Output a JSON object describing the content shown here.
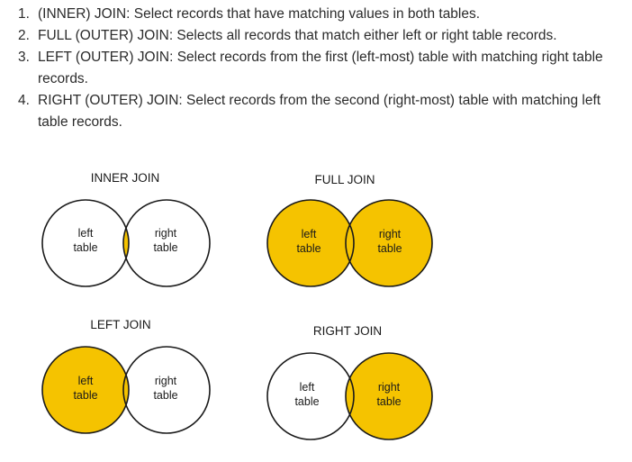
{
  "list": {
    "items": [
      {
        "num": "1.",
        "text": "(INNER) JOIN: Select records that have matching values in both tables."
      },
      {
        "num": "2.",
        "text": "FULL (OUTER) JOIN: Selects all records that match either left or right table records."
      },
      {
        "num": "3.",
        "text": "LEFT (OUTER) JOIN: Select records from the first (left-most) table with matching right table records."
      },
      {
        "num": "4.",
        "text": "RIGHT (OUTER) JOIN: Select records from the second (right-most) table with matching left table records."
      }
    ]
  },
  "diagrams": {
    "fill_color": "#f5c300",
    "stroke_color": "#1a1a1a",
    "inner": {
      "title": "INNER JOIN",
      "left_label_1": "left",
      "left_label_2": "table",
      "right_label_1": "right",
      "right_label_2": "table"
    },
    "full": {
      "title": "FULL JOIN",
      "left_label_1": "left",
      "left_label_2": "table",
      "right_label_1": "right",
      "right_label_2": "table"
    },
    "left": {
      "title": "LEFT JOIN",
      "left_label_1": "left",
      "left_label_2": "table",
      "right_label_1": "right",
      "right_label_2": "table"
    },
    "right": {
      "title": "RIGHT JOIN",
      "left_label_1": "left",
      "left_label_2": "table",
      "right_label_1": "right",
      "right_label_2": "table"
    }
  }
}
